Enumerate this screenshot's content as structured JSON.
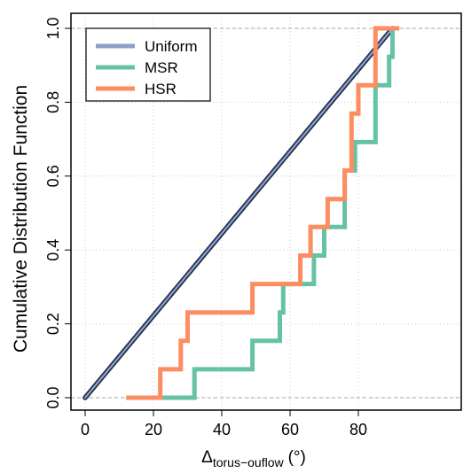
{
  "chart_data": {
    "type": "line",
    "xlabel_symbol": "Δ",
    "xlabel_subscript": "torus−ouflow",
    "xlabel_unit": "(°)",
    "ylabel": "Cumulative Distribution Function",
    "xlim": [
      0,
      92
    ],
    "ylim": [
      0,
      1
    ],
    "x_ticks": [
      0,
      20,
      40,
      60,
      80
    ],
    "x_tick_labels": [
      "0",
      "20",
      "40",
      "60",
      "80"
    ],
    "y_ticks": [
      0,
      0.2,
      0.4,
      0.6,
      0.8,
      1.0
    ],
    "y_tick_labels": [
      "0.0",
      "0.2",
      "0.4",
      "0.6",
      "0.8",
      "1.0"
    ],
    "grid": true,
    "legend_position": "top-left",
    "series": [
      {
        "name": "Uniform",
        "color": "#8da0cb",
        "outline": "#1f2a44",
        "style": "line",
        "x": [
          0,
          90
        ],
        "y": [
          0,
          1
        ]
      },
      {
        "name": "MSR",
        "color": "#66c2a5",
        "style": "step",
        "x": [
          22,
          32,
          32,
          49,
          49,
          57,
          57,
          58,
          58,
          67,
          67,
          68,
          68,
          70,
          70,
          76,
          76,
          79,
          79,
          85,
          85,
          89,
          89,
          90,
          90,
          92
        ],
        "y": [
          0,
          0,
          0.077,
          0.077,
          0.154,
          0.154,
          0.231,
          0.231,
          0.308,
          0.308,
          0.385,
          0.385,
          0.385,
          0.385,
          0.462,
          0.462,
          0.615,
          0.615,
          0.692,
          0.692,
          0.846,
          0.846,
          0.923,
          0.923,
          1.0,
          1.0
        ]
      },
      {
        "name": "HSR",
        "color": "#fc8d62",
        "style": "step",
        "x": [
          12,
          22,
          22,
          28,
          28,
          30,
          30,
          49,
          49,
          57,
          57,
          63,
          63,
          66,
          66,
          71,
          71,
          76,
          76,
          78,
          78,
          80,
          80,
          85,
          85,
          92
        ],
        "y": [
          0,
          0,
          0.077,
          0.077,
          0.154,
          0.154,
          0.231,
          0.231,
          0.308,
          0.308,
          0.308,
          0.308,
          0.385,
          0.385,
          0.462,
          0.462,
          0.538,
          0.538,
          0.615,
          0.615,
          0.769,
          0.769,
          0.846,
          0.846,
          1.0,
          1.0
        ]
      }
    ]
  }
}
